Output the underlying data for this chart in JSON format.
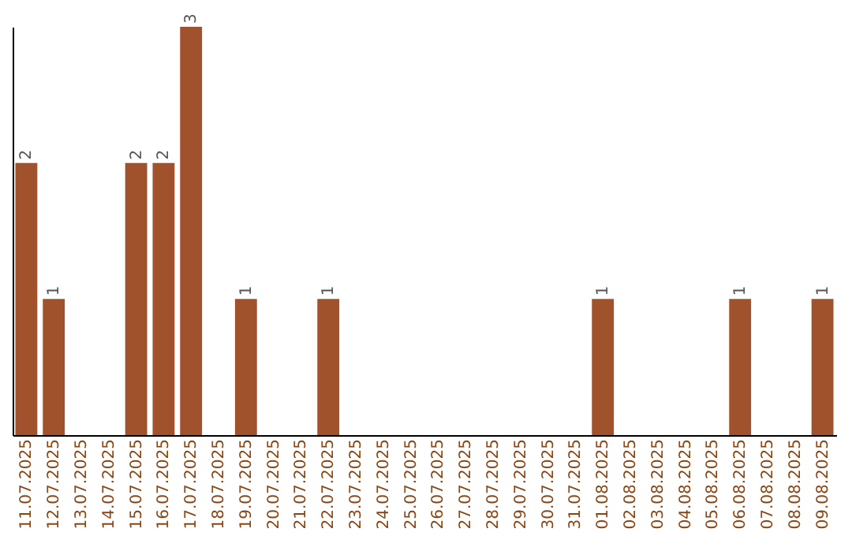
{
  "chart_data": {
    "type": "bar",
    "categories": [
      "11.07.2025",
      "12.07.2025",
      "13.07.2025",
      "14.07.2025",
      "15.07.2025",
      "16.07.2025",
      "17.07.2025",
      "18.07.2025",
      "19.07.2025",
      "20.07.2025",
      "21.07.2025",
      "22.07.2025",
      "23.07.2025",
      "24.07.2025",
      "25.07.2025",
      "26.07.2025",
      "27.07.2025",
      "28.07.2025",
      "29.07.2025",
      "30.07.2025",
      "31.07.2025",
      "01.08.2025",
      "02.08.2025",
      "03.08.2025",
      "04.08.2025",
      "05.08.2025",
      "06.08.2025",
      "07.08.2025",
      "08.08.2025",
      "09.08.2025"
    ],
    "values": [
      2,
      1,
      0,
      0,
      2,
      2,
      3,
      0,
      1,
      0,
      0,
      1,
      0,
      0,
      0,
      0,
      0,
      0,
      0,
      0,
      0,
      1,
      0,
      0,
      0,
      0,
      1,
      0,
      0,
      1
    ],
    "value_labels": [
      "2",
      "1",
      null,
      null,
      "2",
      "2",
      "3",
      null,
      "1",
      null,
      null,
      "1",
      null,
      null,
      null,
      null,
      null,
      null,
      null,
      null,
      null,
      "1",
      null,
      null,
      null,
      null,
      "1",
      null,
      null,
      "1"
    ],
    "color": "#a0522d",
    "grid": false,
    "tick_labels": "x"
  }
}
